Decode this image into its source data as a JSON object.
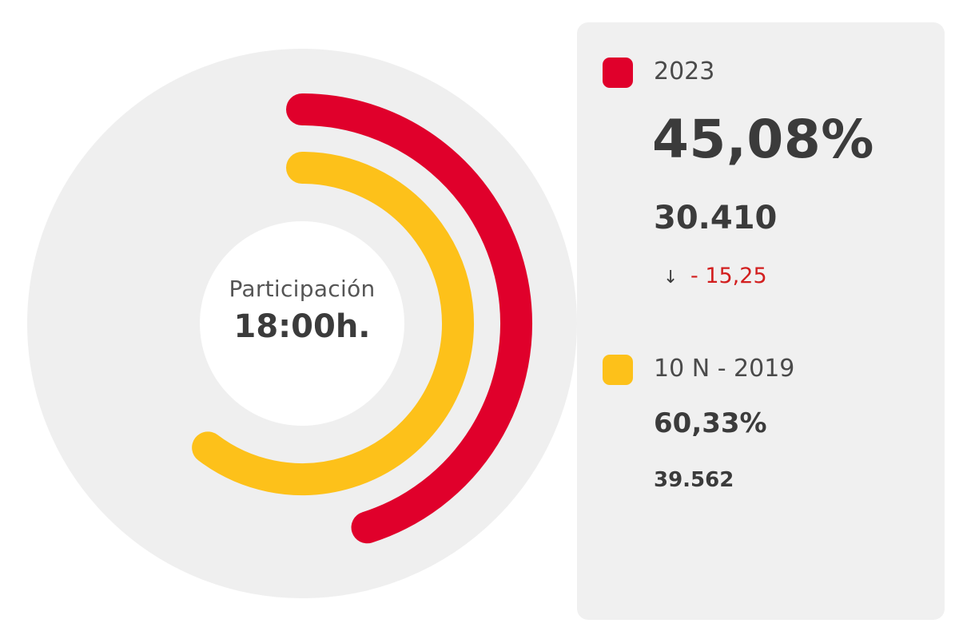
{
  "chart_data": {
    "type": "radial-bar",
    "center": {
      "caption": "Participación",
      "time": "18:00h."
    },
    "series": [
      {
        "name": "2023",
        "percent": 45.08,
        "percent_label": "45,08%",
        "voters": "30.410",
        "change_label": "- 15,25",
        "change_direction": "down",
        "color": "#e0002b"
      },
      {
        "name": "10 N - 2019",
        "percent": 60.33,
        "percent_label": "60,33%",
        "voters": "39.562",
        "color": "#fdc11a"
      }
    ],
    "track_color": "#efefef"
  },
  "icons": {
    "change_arrow": "arrow-down-icon"
  }
}
